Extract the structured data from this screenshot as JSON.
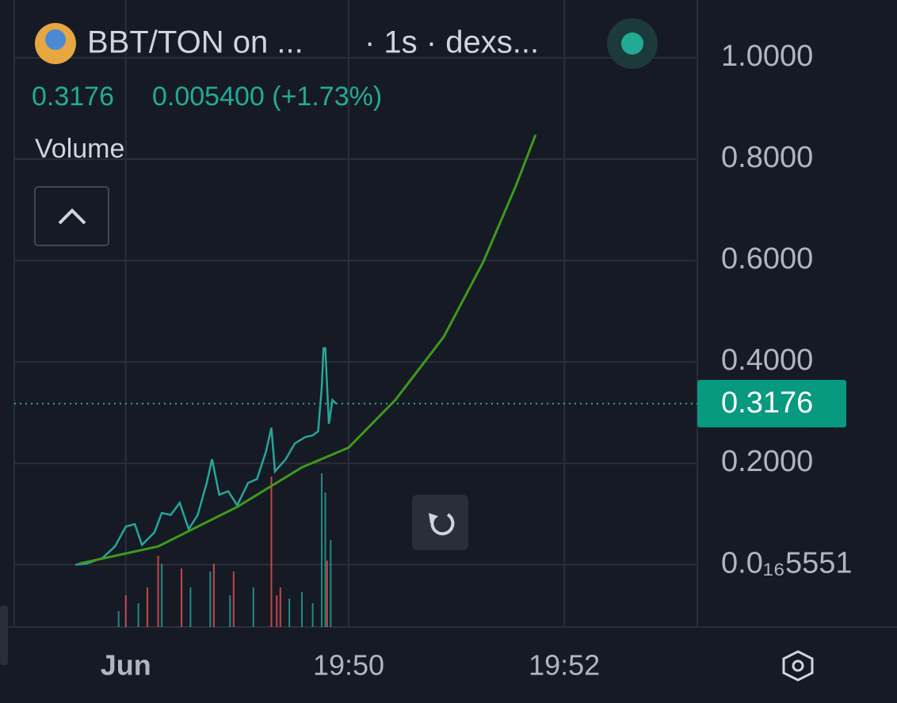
{
  "chart_data": {
    "type": "line",
    "title": "BBT/TON on ...",
    "subtitle": "· 1s · dexs...",
    "price": "0.3176",
    "change": "0.005400 (+1.73%)",
    "volume_label": "Volume",
    "last_price": 0.3176,
    "xlim": [
      71206,
      71594
    ],
    "xticks": [
      {
        "value": 71276,
        "label": "Jun"
      },
      {
        "value": 71400,
        "label": "19:50"
      },
      {
        "value": 71520,
        "label": "19:52"
      }
    ],
    "ylim": [
      -0.123,
      1.114
    ],
    "yticks": [
      {
        "value": 1.0,
        "label": "1.0000"
      },
      {
        "value": 0.8,
        "label": "0.8000"
      },
      {
        "value": 0.6,
        "label": "0.6000"
      },
      {
        "value": 0.4,
        "label": "0.4000"
      },
      {
        "value": 0.2,
        "label": "0.2000"
      },
      {
        "value": 5.551e-17,
        "label": "0.0₁₆5551"
      }
    ],
    "grid": true,
    "series": [
      {
        "color": "#26a69a",
        "x": [
          71248,
          71254,
          71263,
          71270,
          71276,
          71281,
          71285,
          71292,
          71296,
          71301,
          71306,
          71311,
          71316,
          71321,
          71324,
          71328,
          71333,
          71338,
          71344,
          71349,
          71354,
          71357,
          71359,
          71365,
          71370,
          71376,
          71380,
          71383,
          71385,
          71386,
          71387,
          71389,
          71391,
          71393
        ],
        "values": [
          0.0,
          0.002,
          0.013,
          0.036,
          0.075,
          0.08,
          0.039,
          0.064,
          0.102,
          0.098,
          0.122,
          0.07,
          0.098,
          0.161,
          0.208,
          0.138,
          0.145,
          0.117,
          0.161,
          0.169,
          0.223,
          0.27,
          0.184,
          0.208,
          0.239,
          0.252,
          0.255,
          0.263,
          0.348,
          0.427,
          0.427,
          0.278,
          0.325,
          0.3176
        ]
      },
      {
        "color": "#3d9a1c",
        "x": [
          71250,
          71294,
          71338,
          71374,
          71400,
          71426,
          71453,
          71475,
          71493,
          71504
        ],
        "values": [
          0.002,
          0.036,
          0.114,
          0.192,
          0.231,
          0.325,
          0.45,
          0.598,
          0.747,
          0.848
        ]
      }
    ],
    "volume": {
      "ylim": [
        0,
        100
      ],
      "series": [
        {
          "color": "#26a69a",
          "x": [
            71272,
            71283,
            71296,
            71312,
            71323,
            71334,
            71347,
            71367,
            71374,
            71380,
            71385,
            71387,
            71390
          ],
          "values": [
            10,
            15,
            40,
            25,
            35,
            20,
            25,
            18,
            22,
            15,
            97,
            85,
            55
          ]
        },
        {
          "color": "#ef5350",
          "x": [
            71276,
            71288,
            71294,
            71307,
            71325,
            71336,
            71357,
            71360,
            71362,
            71388
          ],
          "values": [
            20,
            25,
            45,
            37,
            40,
            35,
            95,
            20,
            25,
            42
          ]
        }
      ]
    }
  }
}
